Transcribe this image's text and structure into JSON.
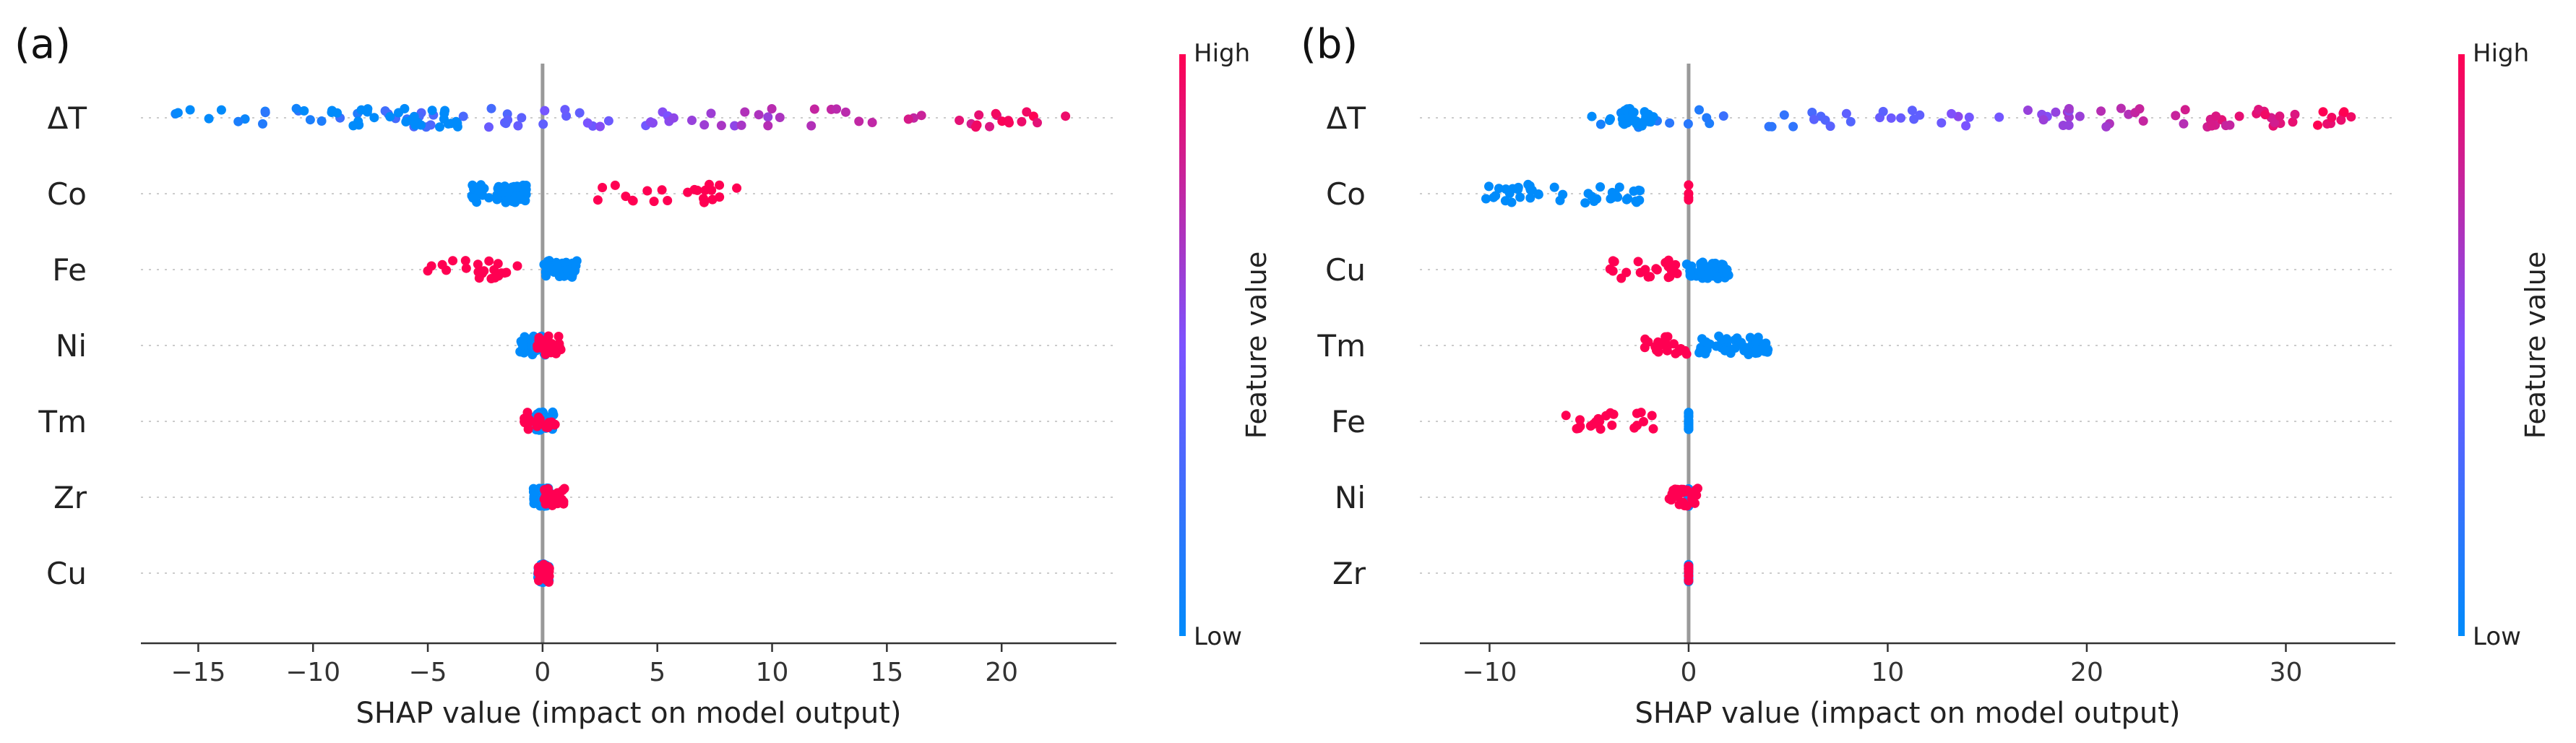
{
  "chart_data": [
    {
      "type": "scatter",
      "subtype": "shap-beeswarm",
      "panel_label": "(a)",
      "xlabel": "SHAP value (impact on model output)",
      "xlim": [
        -17.5,
        25
      ],
      "xticks": [
        -15,
        -10,
        -5,
        0,
        5,
        10,
        15,
        20
      ],
      "features": [
        {
          "name": "ΔT",
          "low_range": [
            -16,
            -2
          ],
          "high_range": [
            -2,
            23
          ],
          "mix": "gradient"
        },
        {
          "name": "Co",
          "low_range": [
            -3.2,
            -0.6
          ],
          "high_range": [
            2.4,
            8.5
          ],
          "mix": "split"
        },
        {
          "name": "Fe",
          "low_range": [
            0,
            1.5
          ],
          "high_range": [
            -5.2,
            -1
          ],
          "mix": "split"
        },
        {
          "name": "Ni",
          "low_range": [
            -1,
            0.2
          ],
          "high_range": [
            -0.3,
            0.9
          ],
          "mix": "split"
        },
        {
          "name": "Tm",
          "low_range": [
            -0.3,
            0.5
          ],
          "high_range": [
            -0.8,
            0.6
          ],
          "mix": "split"
        },
        {
          "name": "Zr",
          "low_range": [
            -0.4,
            0.3
          ],
          "high_range": [
            0,
            1
          ],
          "mix": "split"
        },
        {
          "name": "Cu",
          "low_range": [
            -0.2,
            0.3
          ],
          "high_range": [
            -0.2,
            0.3
          ],
          "mix": "split"
        }
      ],
      "colorbar": {
        "title": "Feature value",
        "high": "High",
        "low": "Low"
      }
    },
    {
      "type": "scatter",
      "subtype": "shap-beeswarm",
      "panel_label": "(b)",
      "xlabel": "SHAP value (impact on model output)",
      "xlim": [
        -13.5,
        35.5
      ],
      "xticks": [
        -10,
        0,
        10,
        20,
        30
      ],
      "features": [
        {
          "name": "ΔT",
          "low_range": [
            -5,
            -1
          ],
          "high_range": [
            1,
            33.5
          ],
          "mix": "gradient"
        },
        {
          "name": "Co",
          "low_range": [
            -10.3,
            -2.3
          ],
          "high_range": [
            0,
            0
          ],
          "mix": "split"
        },
        {
          "name": "Cu",
          "low_range": [
            -0.3,
            2.2
          ],
          "high_range": [
            -4.2,
            -0.5
          ],
          "mix": "split"
        },
        {
          "name": "Tm",
          "low_range": [
            0.5,
            4
          ],
          "high_range": [
            -2.2,
            0.2
          ],
          "mix": "split"
        },
        {
          "name": "Fe",
          "low_range": [
            0,
            0
          ],
          "high_range": [
            -6.2,
            -1.5
          ],
          "mix": "split"
        },
        {
          "name": "Ni",
          "low_range": [
            0,
            0
          ],
          "high_range": [
            -1,
            0.5
          ],
          "mix": "split"
        },
        {
          "name": "Zr",
          "low_range": [
            0,
            0
          ],
          "high_range": [
            0,
            0
          ],
          "mix": "split"
        }
      ],
      "colorbar": {
        "title": "Feature value",
        "high": "High",
        "low": "Low"
      }
    }
  ],
  "colors": {
    "low": "#008bfb",
    "high": "#ff0052",
    "axis": "#333333",
    "zero_line": "#999999",
    "grid": "#cccccc"
  }
}
